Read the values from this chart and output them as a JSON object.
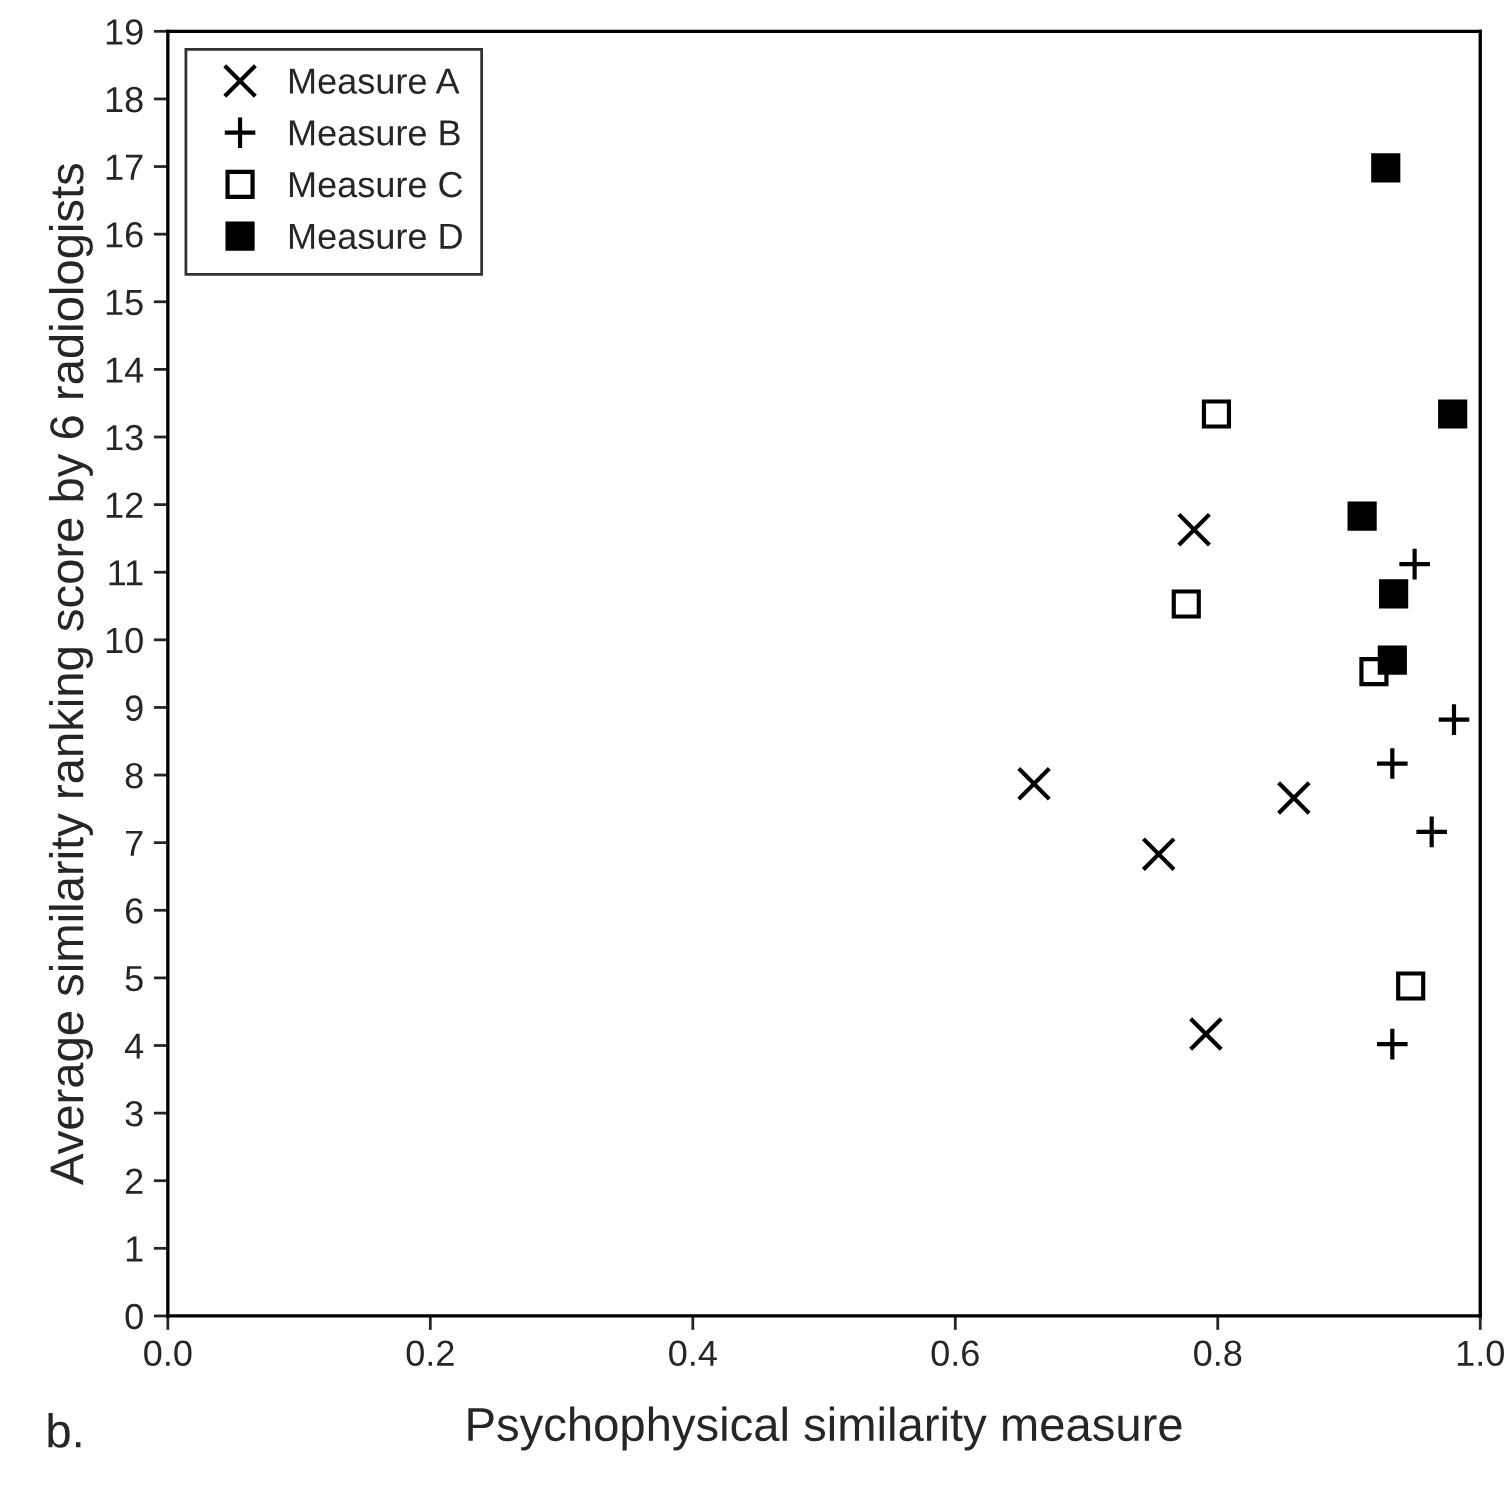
{
  "chart_data": {
    "type": "scatter",
    "xlabel": "Psychophysical similarity measure",
    "ylabel": "Average similarity ranking score by 6 radiologists",
    "annotations": [
      "b."
    ],
    "xlim": [
      0,
      1
    ],
    "xticks": [
      {
        "value": 0,
        "label": "0.0"
      },
      {
        "value": 0.2,
        "label": "0.2"
      },
      {
        "value": 0.4,
        "label": "0.4"
      },
      {
        "value": 0.6,
        "label": "0.6"
      },
      {
        "value": 0.8,
        "label": "0.8"
      },
      {
        "value": 1,
        "label": "1.0"
      }
    ],
    "ylim": [
      0,
      19
    ],
    "yticks": [
      0,
      1,
      2,
      3,
      4,
      5,
      6,
      7,
      8,
      9,
      10,
      11,
      12,
      13,
      14,
      15,
      16,
      17,
      18,
      19
    ],
    "grid": false,
    "legend": "top left",
    "series": [
      {
        "name": "Measure A",
        "color": "#000000",
        "marker": "cross",
        "x": [
          0.66,
          0.755,
          0.858,
          0.791,
          0.782
        ],
        "values": [
          7.87,
          6.83,
          7.66,
          4.17,
          11.63
        ]
      },
      {
        "name": "Measure B",
        "color": "#000000",
        "marker": "plus",
        "x": [
          0.98,
          0.933,
          0.963,
          0.933,
          0.95
        ],
        "values": [
          8.82,
          8.17,
          7.16,
          4.02,
          11.12
        ]
      },
      {
        "name": "Measure C",
        "color": "#ffffff",
        "marker": "square",
        "x": [
          0.947,
          0.799,
          0.776,
          0.919
        ],
        "values": [
          4.88,
          13.34,
          10.53,
          9.53
        ]
      },
      {
        "name": "Measure D",
        "color": "#000000",
        "marker": "square",
        "x": [
          0.928,
          0.979,
          0.91,
          0.934,
          0.933
        ],
        "values": [
          16.98,
          13.34,
          11.83,
          10.68,
          9.7
        ]
      }
    ]
  }
}
